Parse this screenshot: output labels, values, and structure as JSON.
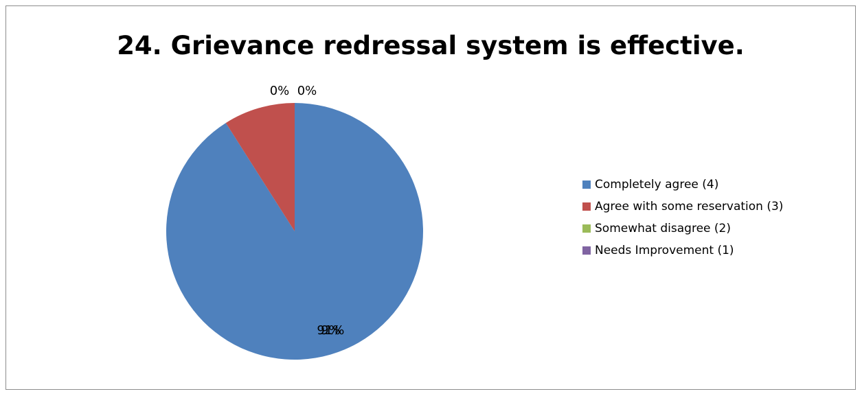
{
  "chart_data": {
    "type": "pie",
    "title": "24. Grievance redressal system is effective.",
    "categories": [
      "Completely agree (4)",
      "Agree with some reservation (3)",
      "Somewhat disagree (2)",
      "Needs Improvement (1)"
    ],
    "values": [
      91,
      9,
      0,
      0
    ],
    "data_labels": [
      "91%",
      "9%",
      "0%",
      "0%"
    ],
    "colors": [
      "#4f81bd",
      "#c0504d",
      "#9bbb59",
      "#8064a2"
    ],
    "legend_position": "right"
  }
}
